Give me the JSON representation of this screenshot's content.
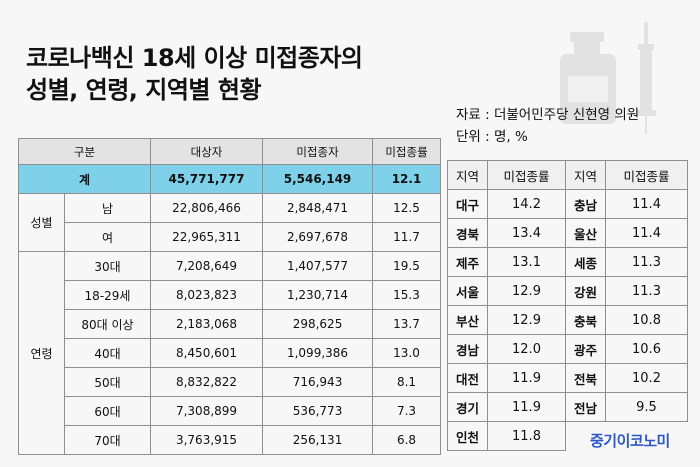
{
  "title": {
    "line1": "코로나백신 18세 이상 미접종자의",
    "line2": "성별, 연령, 지역별 현황"
  },
  "source": {
    "line1": "자료 : 더불어민주당 신현영 의원",
    "line2": "단위 : 명, %"
  },
  "main_table": {
    "headers": [
      "구분",
      "대상자",
      "미접종자",
      "미접종률"
    ],
    "total": {
      "label": "계",
      "target": "45,771,777",
      "unvaccinated": "5,546,149",
      "rate": "12.1"
    },
    "gender_group": "성별",
    "gender_rows": [
      {
        "label": "남",
        "target": "22,806,466",
        "unvaccinated": "2,848,471",
        "rate": "12.5"
      },
      {
        "label": "여",
        "target": "22,965,311",
        "unvaccinated": "2,697,678",
        "rate": "11.7"
      }
    ],
    "age_group": "연령",
    "age_rows": [
      {
        "label": "30대",
        "target": "7,208,649",
        "unvaccinated": "1,407,577",
        "rate": "19.5"
      },
      {
        "label": "18-29세",
        "target": "8,023,823",
        "unvaccinated": "1,230,714",
        "rate": "15.3"
      },
      {
        "label": "80대 이상",
        "target": "2,183,068",
        "unvaccinated": "298,625",
        "rate": "13.7"
      },
      {
        "label": "40대",
        "target": "8,450,601",
        "unvaccinated": "1,099,386",
        "rate": "13.0"
      },
      {
        "label": "50대",
        "target": "8,832,822",
        "unvaccinated": "716,943",
        "rate": "8.1"
      },
      {
        "label": "60대",
        "target": "7,308,899",
        "unvaccinated": "536,773",
        "rate": "7.3"
      },
      {
        "label": "70대",
        "target": "3,763,915",
        "unvaccinated": "256,131",
        "rate": "6.8"
      }
    ]
  },
  "region_table": {
    "headers": [
      "지역",
      "미접종률",
      "지역",
      "미접종률"
    ],
    "rows": [
      {
        "r1": "대구",
        "v1": "14.2",
        "r2": "충남",
        "v2": "11.4"
      },
      {
        "r1": "경북",
        "v1": "13.4",
        "r2": "울산",
        "v2": "11.4"
      },
      {
        "r1": "제주",
        "v1": "13.1",
        "r2": "세종",
        "v2": "11.3"
      },
      {
        "r1": "서울",
        "v1": "12.9",
        "r2": "강원",
        "v2": "11.3"
      },
      {
        "r1": "부산",
        "v1": "12.9",
        "r2": "충북",
        "v2": "10.8"
      },
      {
        "r1": "경남",
        "v1": "12.0",
        "r2": "광주",
        "v2": "10.6"
      },
      {
        "r1": "대전",
        "v1": "11.9",
        "r2": "전북",
        "v2": "10.2"
      },
      {
        "r1": "경기",
        "v1": "11.9",
        "r2": "전남",
        "v2": "9.5"
      },
      {
        "r1": "인천",
        "v1": "11.8",
        "r2": "",
        "v2": ""
      }
    ]
  },
  "brand": "중기이코노미",
  "icons": [
    "vaccine-bottle-icon",
    "syringe-icon"
  ]
}
